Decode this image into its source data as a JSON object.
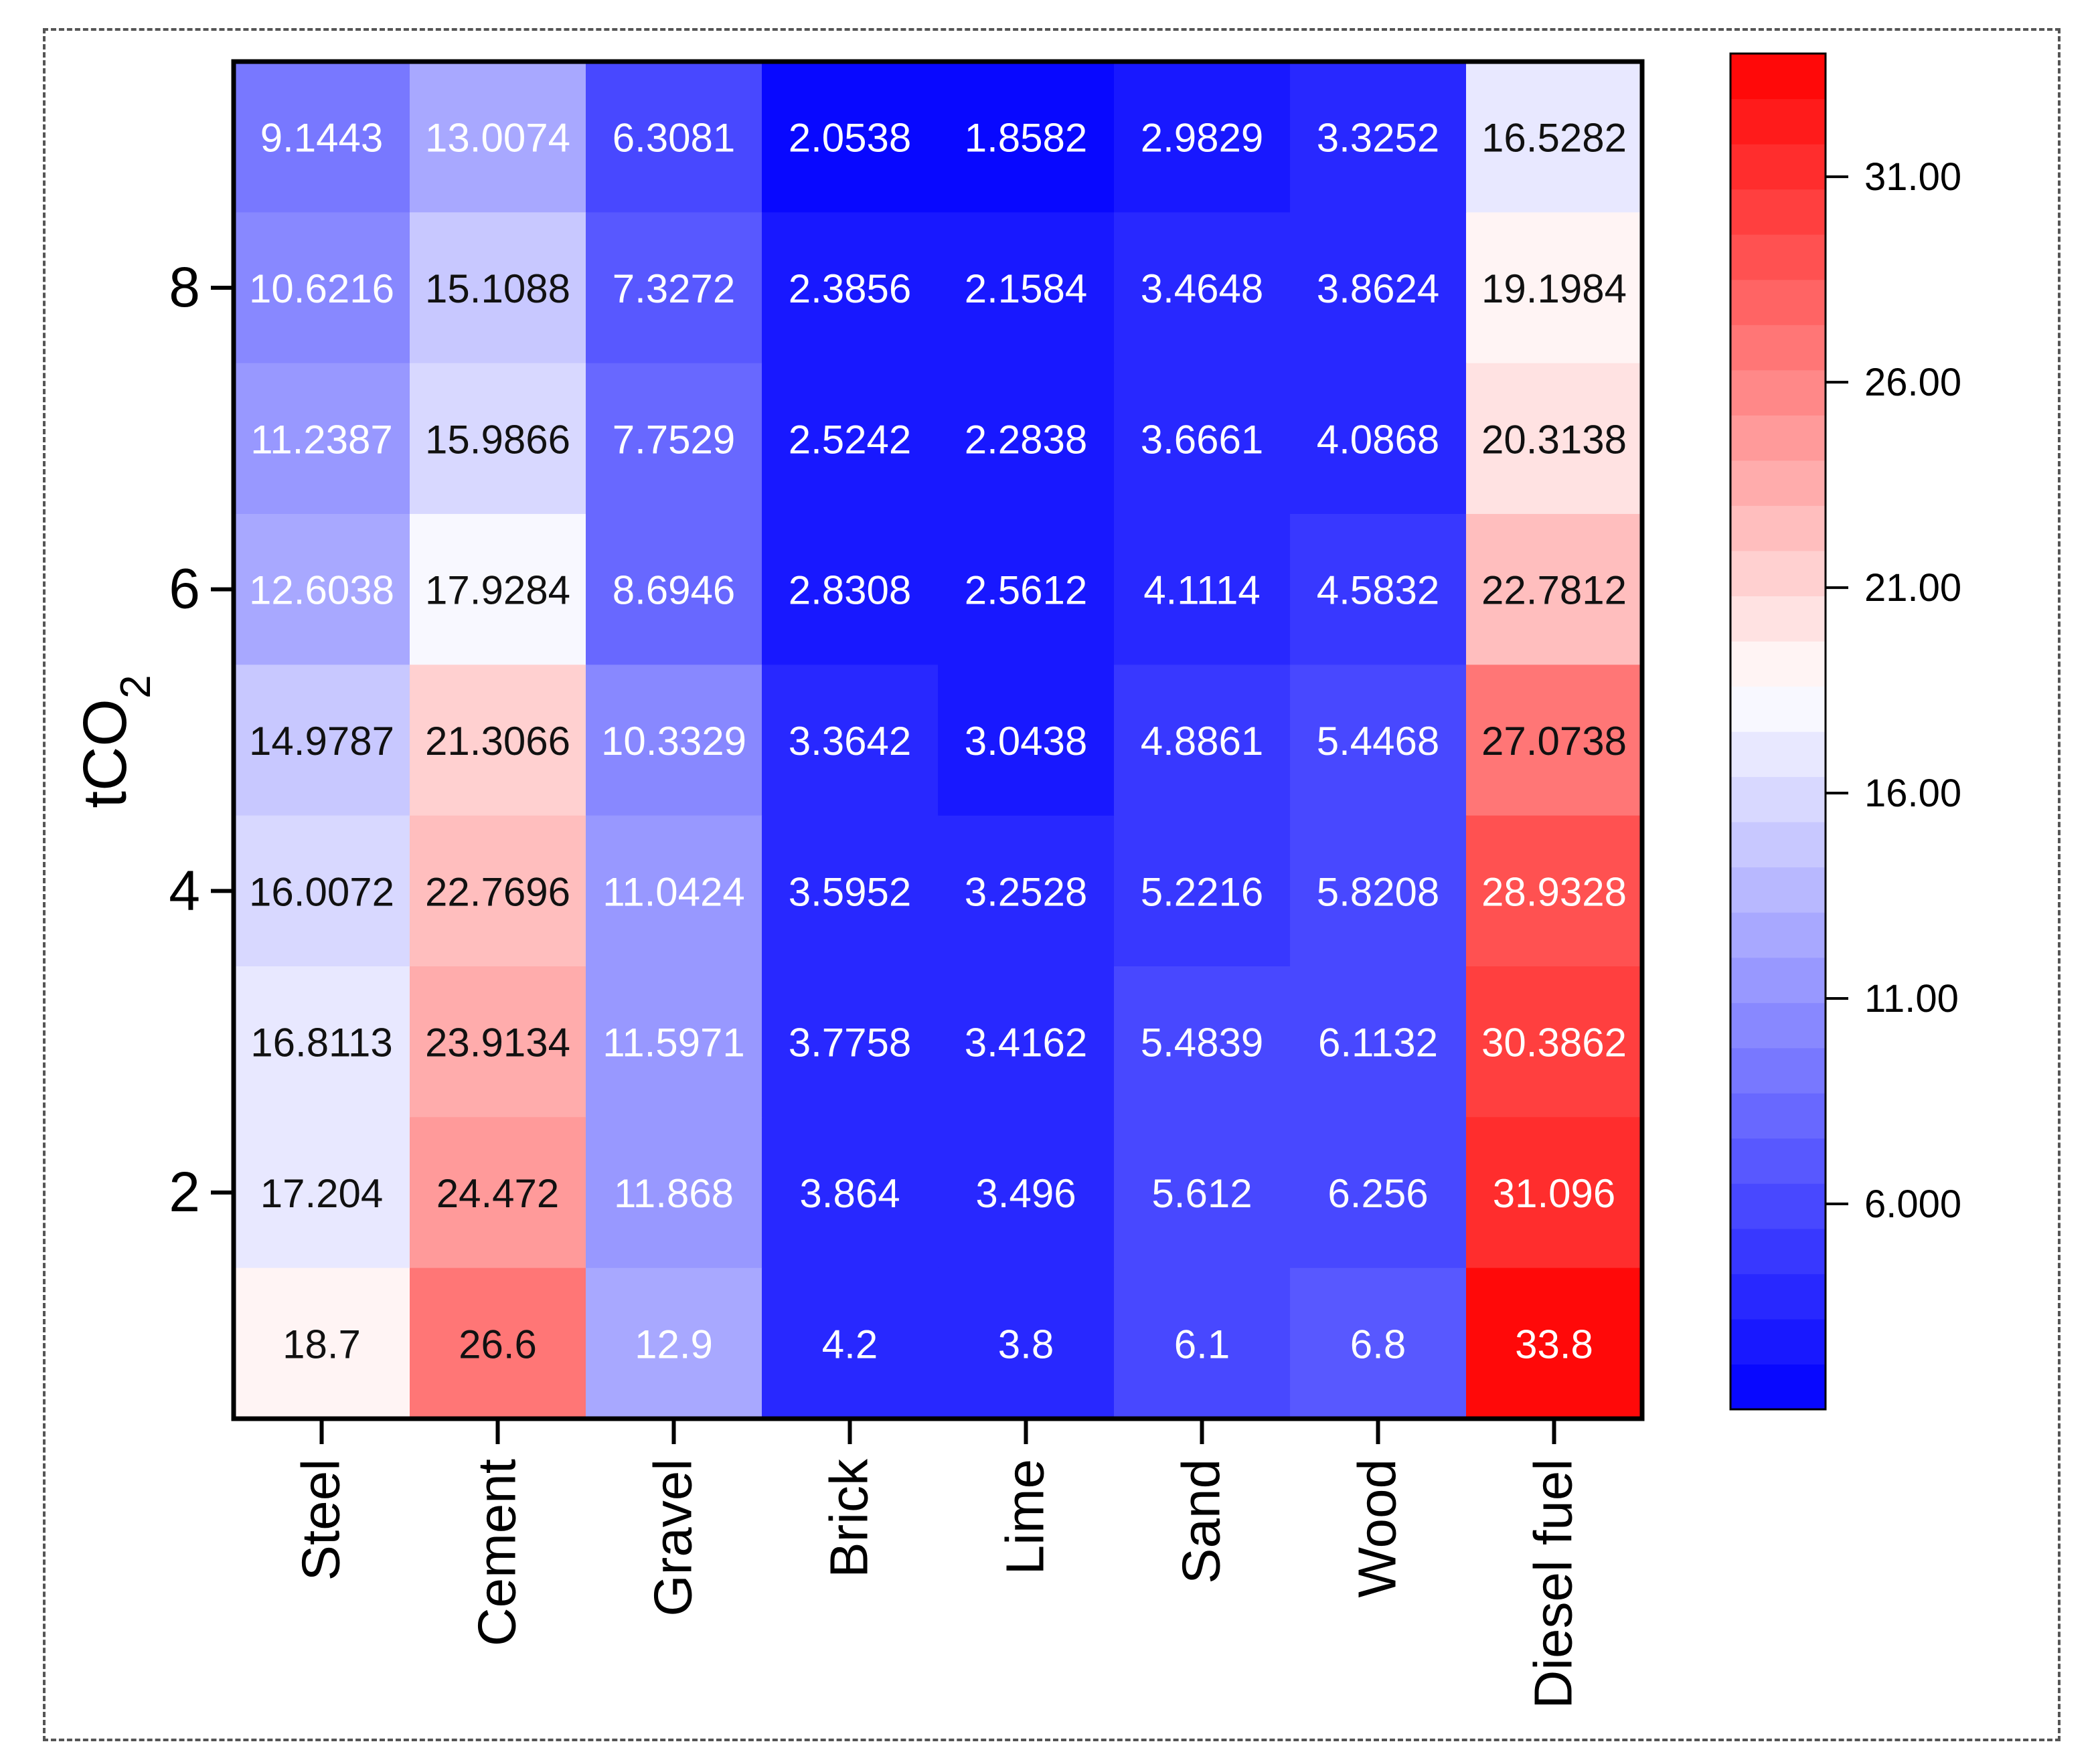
{
  "chart_data": {
    "type": "heatmap",
    "title": "",
    "xlabel": "",
    "ylabel": "tCO",
    "ylabel_subscript": "2",
    "categories": [
      "Steel",
      "Cement",
      "Gravel",
      "Brick",
      "Lime",
      "Sand",
      "Wood",
      "Diesel fuel"
    ],
    "y_ticks": [
      "8",
      "6",
      "4",
      "2"
    ],
    "y_tick_rows": [
      2,
      4,
      6,
      8
    ],
    "rows": [
      [
        9.1443,
        13.0074,
        6.3081,
        2.0538,
        1.8582,
        2.9829,
        3.3252,
        16.5282
      ],
      [
        10.6216,
        15.1088,
        7.3272,
        2.3856,
        2.1584,
        3.4648,
        3.8624,
        19.1984
      ],
      [
        11.2387,
        15.9866,
        7.7529,
        2.5242,
        2.2838,
        3.6661,
        4.0868,
        20.3138
      ],
      [
        12.6038,
        17.9284,
        8.6946,
        2.8308,
        2.5612,
        4.1114,
        4.5832,
        22.7812
      ],
      [
        14.9787,
        21.3066,
        10.3329,
        3.3642,
        3.0438,
        4.8861,
        5.4468,
        27.0738
      ],
      [
        16.0072,
        22.7696,
        11.0424,
        3.5952,
        3.2528,
        5.2216,
        5.8208,
        28.9328
      ],
      [
        16.8113,
        23.9134,
        11.5971,
        3.7758,
        3.4162,
        5.4839,
        6.1132,
        30.3862
      ],
      [
        17.204,
        24.472,
        11.868,
        3.864,
        3.496,
        5.612,
        6.256,
        31.096
      ],
      [
        18.7,
        26.6,
        12.9,
        4.2,
        3.8,
        6.1,
        6.8,
        33.8
      ]
    ],
    "labels": [
      [
        "9.1443",
        "13.0074",
        "6.3081",
        "2.0538",
        "1.8582",
        "2.9829",
        "3.3252",
        "16.5282"
      ],
      [
        "10.6216",
        "15.1088",
        "7.3272",
        "2.3856",
        "2.1584",
        "3.4648",
        "3.8624",
        "19.1984"
      ],
      [
        "11.2387",
        "15.9866",
        "7.7529",
        "2.5242",
        "2.2838",
        "3.6661",
        "4.0868",
        "20.3138"
      ],
      [
        "12.6038",
        "17.9284",
        "8.6946",
        "2.8308",
        "2.5612",
        "4.1114",
        "4.5832",
        "22.7812"
      ],
      [
        "14.9787",
        "21.3066",
        "10.3329",
        "3.3642",
        "3.0438",
        "4.8861",
        "5.4468",
        "27.0738"
      ],
      [
        "16.0072",
        "22.7696",
        "11.0424",
        "3.5952",
        "3.2528",
        "5.2216",
        "5.8208",
        "28.9328"
      ],
      [
        "16.8113",
        "23.9134",
        "11.5971",
        "3.7758",
        "3.4162",
        "5.4839",
        "6.1132",
        "30.3862"
      ],
      [
        "17.204",
        "24.472",
        "11.868",
        "3.864",
        "3.496",
        "5.612",
        "6.256",
        "31.096"
      ],
      [
        "18.7",
        "26.6",
        "12.9",
        "4.2",
        "3.8",
        "6.1",
        "6.8",
        "33.8"
      ]
    ],
    "colorbar": {
      "min": 1,
      "max": 34,
      "levels": 30,
      "low_color": "#0000ff",
      "mid_color": "#ffffff",
      "high_color": "#ff0000",
      "mid_value": 18.5,
      "ticks": [
        {
          "value": 31,
          "label": "31.00"
        },
        {
          "value": 26,
          "label": "26.00"
        },
        {
          "value": 21,
          "label": "21.00"
        },
        {
          "value": 16,
          "label": "16.00"
        },
        {
          "value": 11,
          "label": "11.00"
        },
        {
          "value": 6,
          "label": "6.000"
        }
      ]
    }
  }
}
